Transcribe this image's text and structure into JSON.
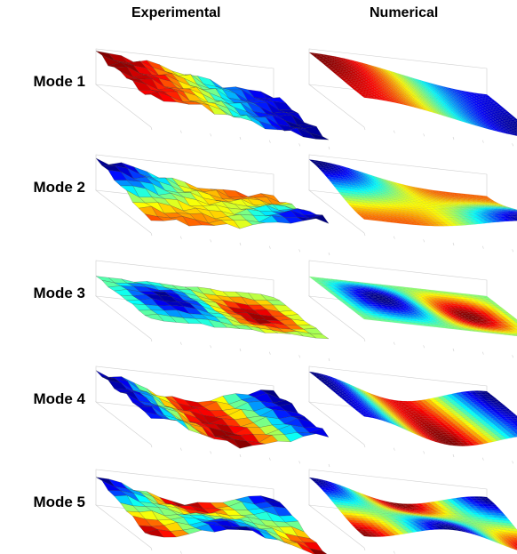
{
  "headers": {
    "experimental": "Experimental",
    "numerical": "Numerical"
  },
  "modes": [
    {
      "label": "Mode 1"
    },
    {
      "label": "Mode 2"
    },
    {
      "label": "Mode 3"
    },
    {
      "label": "Mode 4"
    },
    {
      "label": "Mode 5"
    }
  ],
  "colormap": "jet"
}
